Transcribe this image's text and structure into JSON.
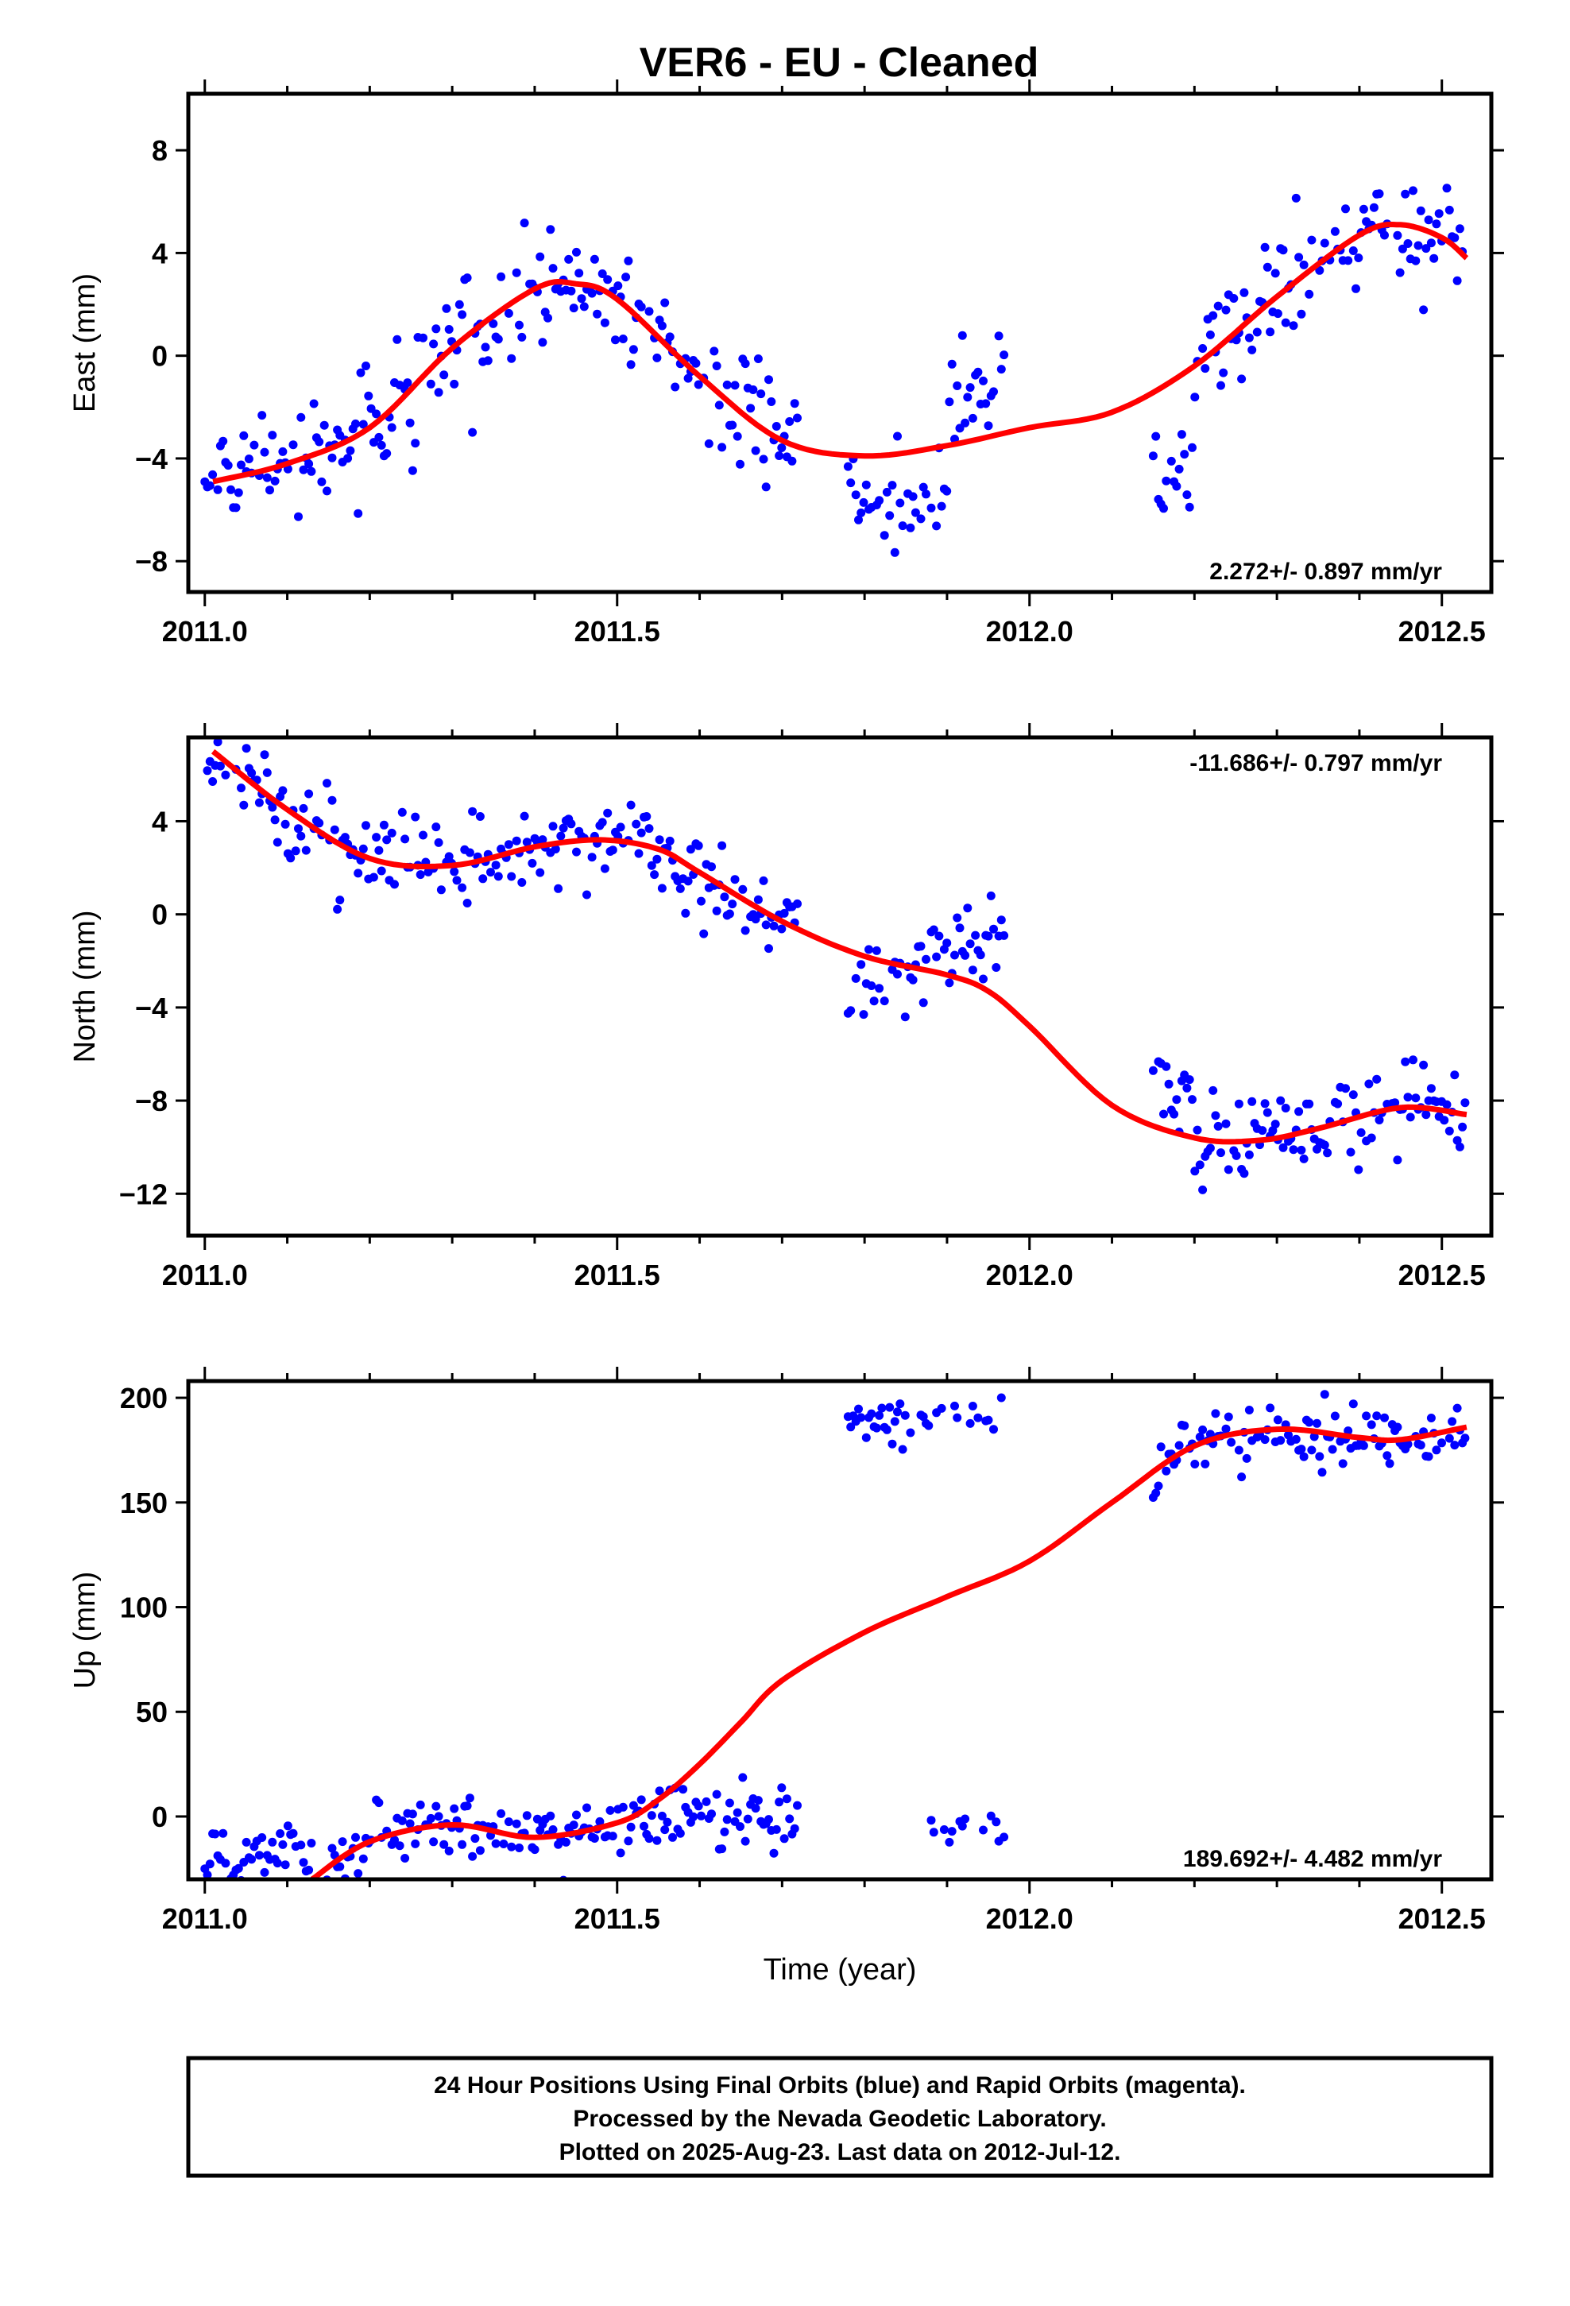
{
  "title": "VER6  - EU - Cleaned",
  "footer": {
    "lines": [
      "24 Hour Positions Using Final Orbits (blue) and Rapid Orbits (magenta).",
      "Processed by the Nevada Geodetic Laboratory.",
      "Plotted on 2025-Aug-23. Last data on 2012-Jul-12."
    ]
  },
  "colors": {
    "points": "#0000ff",
    "fit": "#ff0000",
    "frame": "#000000"
  },
  "chart_data": [
    {
      "type": "scatter",
      "ylabel": "East (mm)",
      "xlabel": "",
      "xlim": [
        2010.98,
        2012.56
      ],
      "ylim": [
        -9.2,
        10.2
      ],
      "xticks": [
        2011.0,
        2011.5,
        2012.0,
        2012.5
      ],
      "xtick_labels": [
        "2011.0",
        "2011.5",
        "2012.0",
        "2012.5"
      ],
      "yticks": [
        -8,
        -4,
        0,
        4,
        8
      ],
      "ytick_labels": [
        "−8",
        "−4",
        "0",
        "4",
        "8"
      ],
      "rate": "2.272+/- 0.897 mm/yr",
      "rate_position": "bottom-right",
      "segments": [
        [
          2011.0,
          2011.72
        ],
        [
          2011.78,
          2011.97
        ],
        [
          2012.15,
          2012.53
        ]
      ],
      "model": {
        "x": [
          2011.01,
          2011.1,
          2011.2,
          2011.3,
          2011.4,
          2011.45,
          2011.5,
          2011.6,
          2011.7,
          2011.8,
          2011.9,
          2012.0,
          2012.1,
          2012.2,
          2012.3,
          2012.4,
          2012.45,
          2012.5,
          2012.53
        ],
        "y": [
          -4.9,
          -4.2,
          -2.8,
          0.3,
          2.6,
          2.8,
          2.2,
          -0.8,
          -3.3,
          -3.9,
          -3.5,
          -2.8,
          -2.2,
          -0.4,
          2.3,
          4.7,
          5.1,
          4.6,
          3.8
        ]
      }
    },
    {
      "type": "scatter",
      "ylabel": "North (mm)",
      "xlabel": "",
      "xlim": [
        2010.98,
        2012.56
      ],
      "ylim": [
        -13.8,
        7.6
      ],
      "xticks": [
        2011.0,
        2011.5,
        2012.0,
        2012.5
      ],
      "xtick_labels": [
        "2011.0",
        "2011.5",
        "2012.0",
        "2012.5"
      ],
      "yticks": [
        -12,
        -8,
        -4,
        0,
        4
      ],
      "ytick_labels": [
        "−12",
        "−8",
        "−4",
        "0",
        "4"
      ],
      "rate": "-11.686+/- 0.797 mm/yr",
      "rate_position": "top-right",
      "segments": [
        [
          2011.0,
          2011.72
        ],
        [
          2011.78,
          2011.97
        ],
        [
          2012.15,
          2012.53
        ]
      ],
      "model": {
        "x": [
          2011.01,
          2011.1,
          2011.2,
          2011.3,
          2011.4,
          2011.48,
          2011.55,
          2011.6,
          2011.7,
          2011.8,
          2011.9,
          2011.95,
          2012.0,
          2012.1,
          2012.2,
          2012.28,
          2012.35,
          2012.45,
          2012.53
        ],
        "y": [
          7.0,
          4.5,
          2.4,
          2.1,
          2.9,
          3.2,
          2.8,
          1.8,
          -0.3,
          -1.8,
          -2.6,
          -3.3,
          -4.8,
          -8.2,
          -9.6,
          -9.7,
          -9.2,
          -8.3,
          -8.6
        ]
      }
    },
    {
      "type": "scatter",
      "ylabel": "Up (mm)",
      "xlabel": "Time (year)",
      "xlim": [
        2010.98,
        2012.56
      ],
      "ylim": [
        -30,
        208
      ],
      "xticks": [
        2011.0,
        2011.5,
        2012.0,
        2012.5
      ],
      "xtick_labels": [
        "2011.0",
        "2011.5",
        "2012.0",
        "2012.5"
      ],
      "yticks": [
        0,
        50,
        100,
        150,
        200
      ],
      "ytick_labels": [
        "0",
        "50",
        "100",
        "150",
        "200"
      ],
      "rate": "189.692+/- 4.482 mm/yr",
      "rate_position": "bottom-right",
      "segments": [
        [
          2011.0,
          2011.72
        ],
        [
          2011.78,
          2011.97
        ],
        [
          2012.15,
          2012.53
        ]
      ],
      "model": {
        "x": [
          2011.13,
          2011.2,
          2011.3,
          2011.4,
          2011.5,
          2011.55,
          2011.6,
          2011.65,
          2011.7,
          2011.8,
          2011.9,
          2012.0,
          2012.1,
          2012.2,
          2012.3,
          2012.4,
          2012.45,
          2012.53
        ],
        "y": [
          -30,
          -12,
          -4,
          -10,
          -3,
          8,
          25,
          45,
          65,
          88,
          105,
          122,
          150,
          177,
          185,
          181,
          180,
          186
        ]
      }
    }
  ]
}
